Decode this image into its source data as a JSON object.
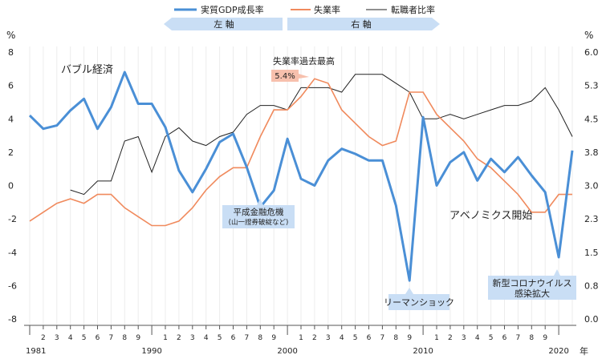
{
  "legend": [
    {
      "label": "実質GDP成長率",
      "color": "#4a8fd6"
    },
    {
      "label": "失業率",
      "color": "#f08a5d"
    },
    {
      "label": "転職者比率",
      "color": "#222222"
    }
  ],
  "axis_headers": {
    "left_unit": "%",
    "right_unit": "%",
    "left_banner": "左 軸",
    "right_banner": "右 軸",
    "year_unit": "年"
  },
  "annotations": {
    "bubble": "バブル経済",
    "unemp_peak_title": "失業率過去最高",
    "unemp_peak_value": "5.4%",
    "heisei_crisis_1": "平成金融危機",
    "heisei_crisis_2": "(山一證券破綻など)",
    "abenomics": "アベノミクス開始",
    "lehman": "リーマンショック",
    "covid_1": "新型コロナウイルス",
    "covid_2": "感染拡大"
  },
  "chart_data": {
    "type": "line",
    "x": [
      1981,
      1982,
      1983,
      1984,
      1985,
      1986,
      1987,
      1988,
      1989,
      1990,
      1991,
      1992,
      1993,
      1994,
      1995,
      1996,
      1997,
      1998,
      1999,
      2000,
      2001,
      2002,
      2003,
      2004,
      2005,
      2006,
      2007,
      2008,
      2009,
      2010,
      2011,
      2012,
      2013,
      2014,
      2015,
      2016,
      2017,
      2018,
      2019,
      2020,
      2021
    ],
    "series": [
      {
        "name": "実質GDP成長率",
        "axis": "left",
        "color": "#4a8fd6",
        "values": [
          4.2,
          3.4,
          3.6,
          4.5,
          5.2,
          3.4,
          4.7,
          6.8,
          4.9,
          4.9,
          3.5,
          0.9,
          -0.4,
          1.0,
          2.6,
          3.1,
          1.1,
          -1.3,
          -0.3,
          2.8,
          0.4,
          0.0,
          1.5,
          2.2,
          1.9,
          1.5,
          1.5,
          -1.2,
          -5.7,
          4.1,
          0.0,
          1.4,
          2.0,
          0.3,
          1.6,
          0.8,
          1.7,
          0.6,
          -0.4,
          -4.3,
          2.1
        ]
      },
      {
        "name": "失業率",
        "axis": "right",
        "color": "#f08a5d",
        "values": [
          2.2,
          2.4,
          2.6,
          2.7,
          2.6,
          2.8,
          2.8,
          2.5,
          2.3,
          2.1,
          2.1,
          2.2,
          2.5,
          2.9,
          3.2,
          3.4,
          3.4,
          4.1,
          4.7,
          4.7,
          5.0,
          5.4,
          5.3,
          4.7,
          4.4,
          4.1,
          3.9,
          4.0,
          5.1,
          5.1,
          4.6,
          4.3,
          4.0,
          3.6,
          3.4,
          3.1,
          2.8,
          2.4,
          2.4,
          2.8,
          2.8
        ]
      },
      {
        "name": "転職者比率",
        "axis": "right",
        "color": "#222222",
        "values": [
          null,
          null,
          null,
          2.9,
          2.8,
          3.1,
          3.1,
          4.0,
          4.1,
          3.3,
          4.1,
          4.3,
          4.0,
          3.9,
          4.1,
          4.2,
          4.6,
          4.8,
          4.8,
          4.7,
          5.2,
          5.2,
          5.2,
          5.1,
          5.5,
          5.5,
          5.5,
          5.3,
          5.1,
          4.5,
          4.5,
          4.6,
          4.5,
          4.6,
          4.7,
          4.8,
          4.8,
          4.9,
          5.2,
          4.7,
          4.1
        ]
      }
    ],
    "y_left": {
      "ylim": [
        -8,
        8
      ],
      "ticks": [
        "8",
        "6",
        "4",
        "2",
        "0",
        "-2",
        "-4",
        "-6",
        "-8"
      ]
    },
    "y_right": {
      "ylim": [
        0.0,
        6.0
      ],
      "ticks": [
        "6.0",
        "5.3",
        "4.5",
        "3.8",
        "3.0",
        "2.3",
        "1.5",
        "0.8",
        "0.0"
      ]
    },
    "x_tick_labels": [
      "1981",
      "2",
      "3",
      "4",
      "5",
      "6",
      "7",
      "8",
      "9",
      "1990",
      "1",
      "2",
      "3",
      "4",
      "5",
      "6",
      "7",
      "8",
      "9",
      "2000",
      "1",
      "2",
      "3",
      "4",
      "5",
      "6",
      "7",
      "8",
      "9",
      "2010",
      "1",
      "2",
      "3",
      "4",
      "5",
      "6",
      "7",
      "8",
      "9",
      "2020"
    ],
    "grid": "vertical-light",
    "legend_position": "top"
  }
}
